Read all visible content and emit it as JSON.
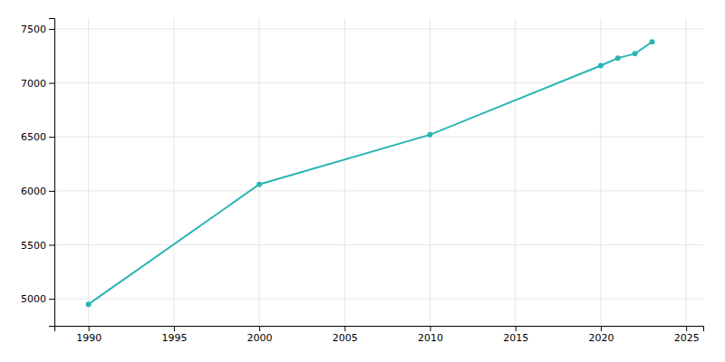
{
  "chart_data": {
    "type": "line",
    "x": [
      1990,
      2000,
      2010,
      2020,
      2021,
      2022,
      2023
    ],
    "values": [
      4950,
      6060,
      6520,
      7160,
      7230,
      7270,
      7380
    ],
    "color": "#2ab5b5",
    "marker": "circle",
    "xlim": [
      1988,
      2026
    ],
    "ylim": [
      4750,
      7600
    ],
    "xticks": [
      1990,
      1995,
      2000,
      2005,
      2010,
      2015,
      2020,
      2025
    ],
    "yticks": [
      5000,
      5500,
      6000,
      6500,
      7000,
      7500
    ],
    "grid": true
  }
}
